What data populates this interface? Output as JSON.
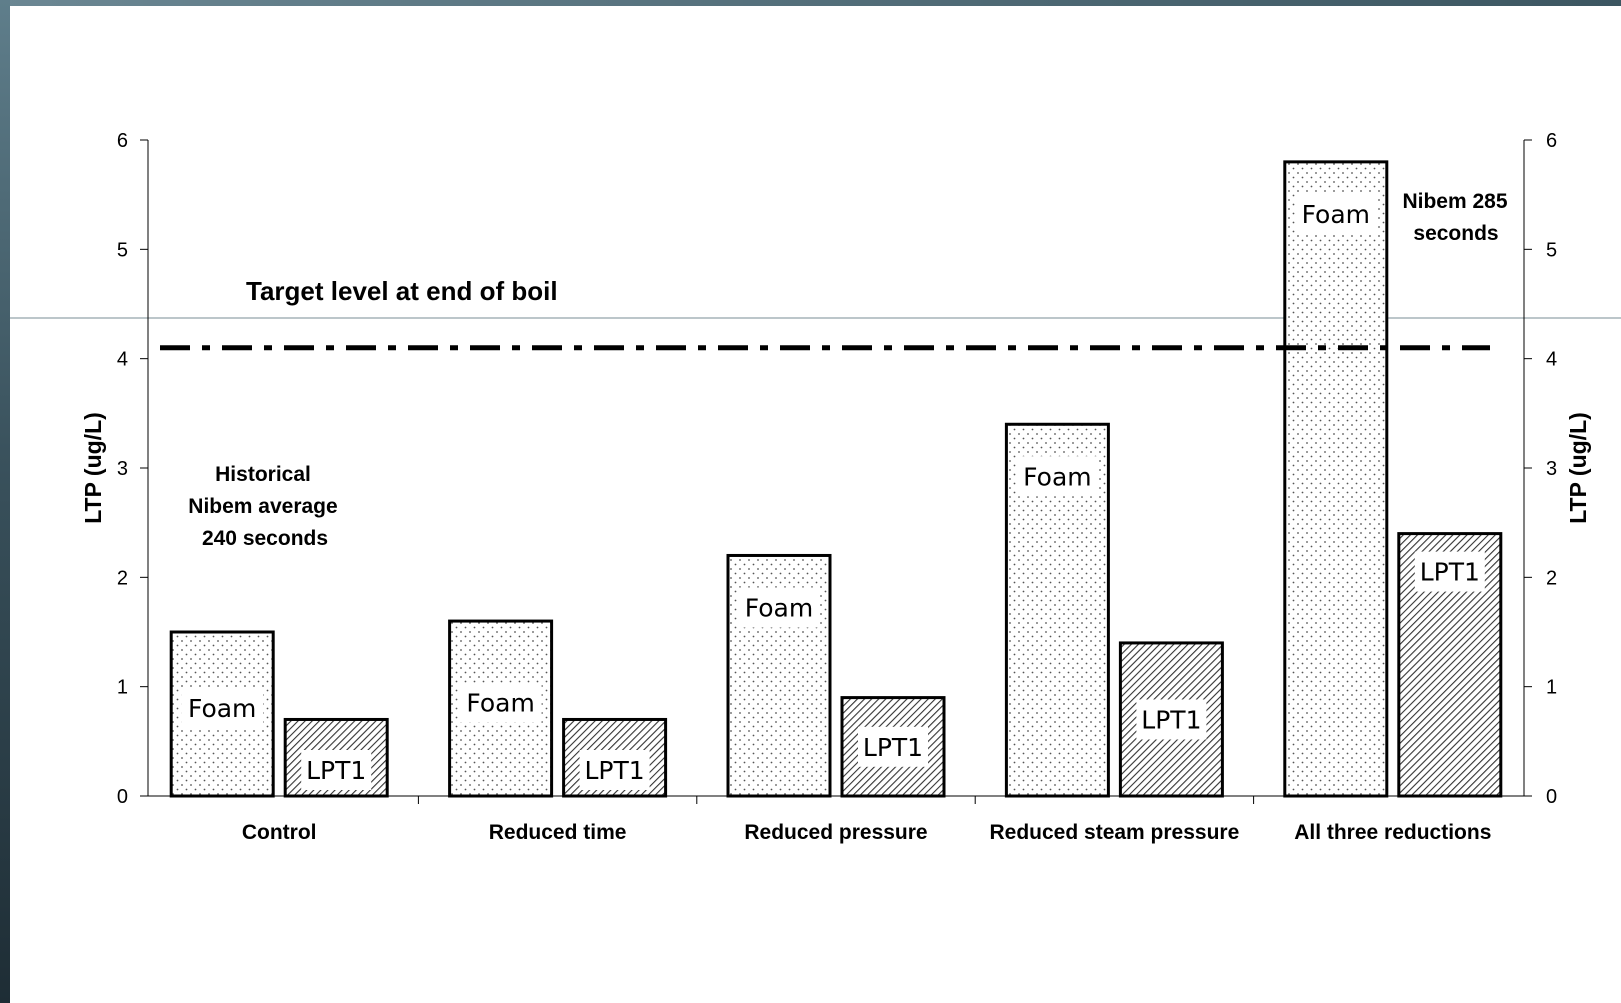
{
  "chart_data": {
    "type": "bar",
    "categories": [
      "Control",
      "Reduced time",
      "Reduced pressure",
      "Reduced steam pressure",
      "All three reductions"
    ],
    "series": [
      {
        "name": "Foam",
        "values": [
          1.5,
          1.6,
          2.2,
          3.4,
          5.8
        ]
      },
      {
        "name": "LPT1",
        "values": [
          0.7,
          0.7,
          0.9,
          1.4,
          2.4
        ]
      }
    ],
    "ylabel": "LTP (ug/L)",
    "ylabel_right": "LTP (ug/L)",
    "ylim": [
      0,
      6
    ],
    "yticks": [
      "0",
      "1",
      "2",
      "3",
      "4",
      "5",
      "6"
    ],
    "target_line": {
      "value": 4.1,
      "label": "Target level at end of boil"
    },
    "annotations": {
      "historical": [
        "Historical",
        "Nibem average",
        "240 seconds"
      ],
      "nibem": [
        "Nibem 285",
        "seconds"
      ]
    },
    "grid": false
  }
}
